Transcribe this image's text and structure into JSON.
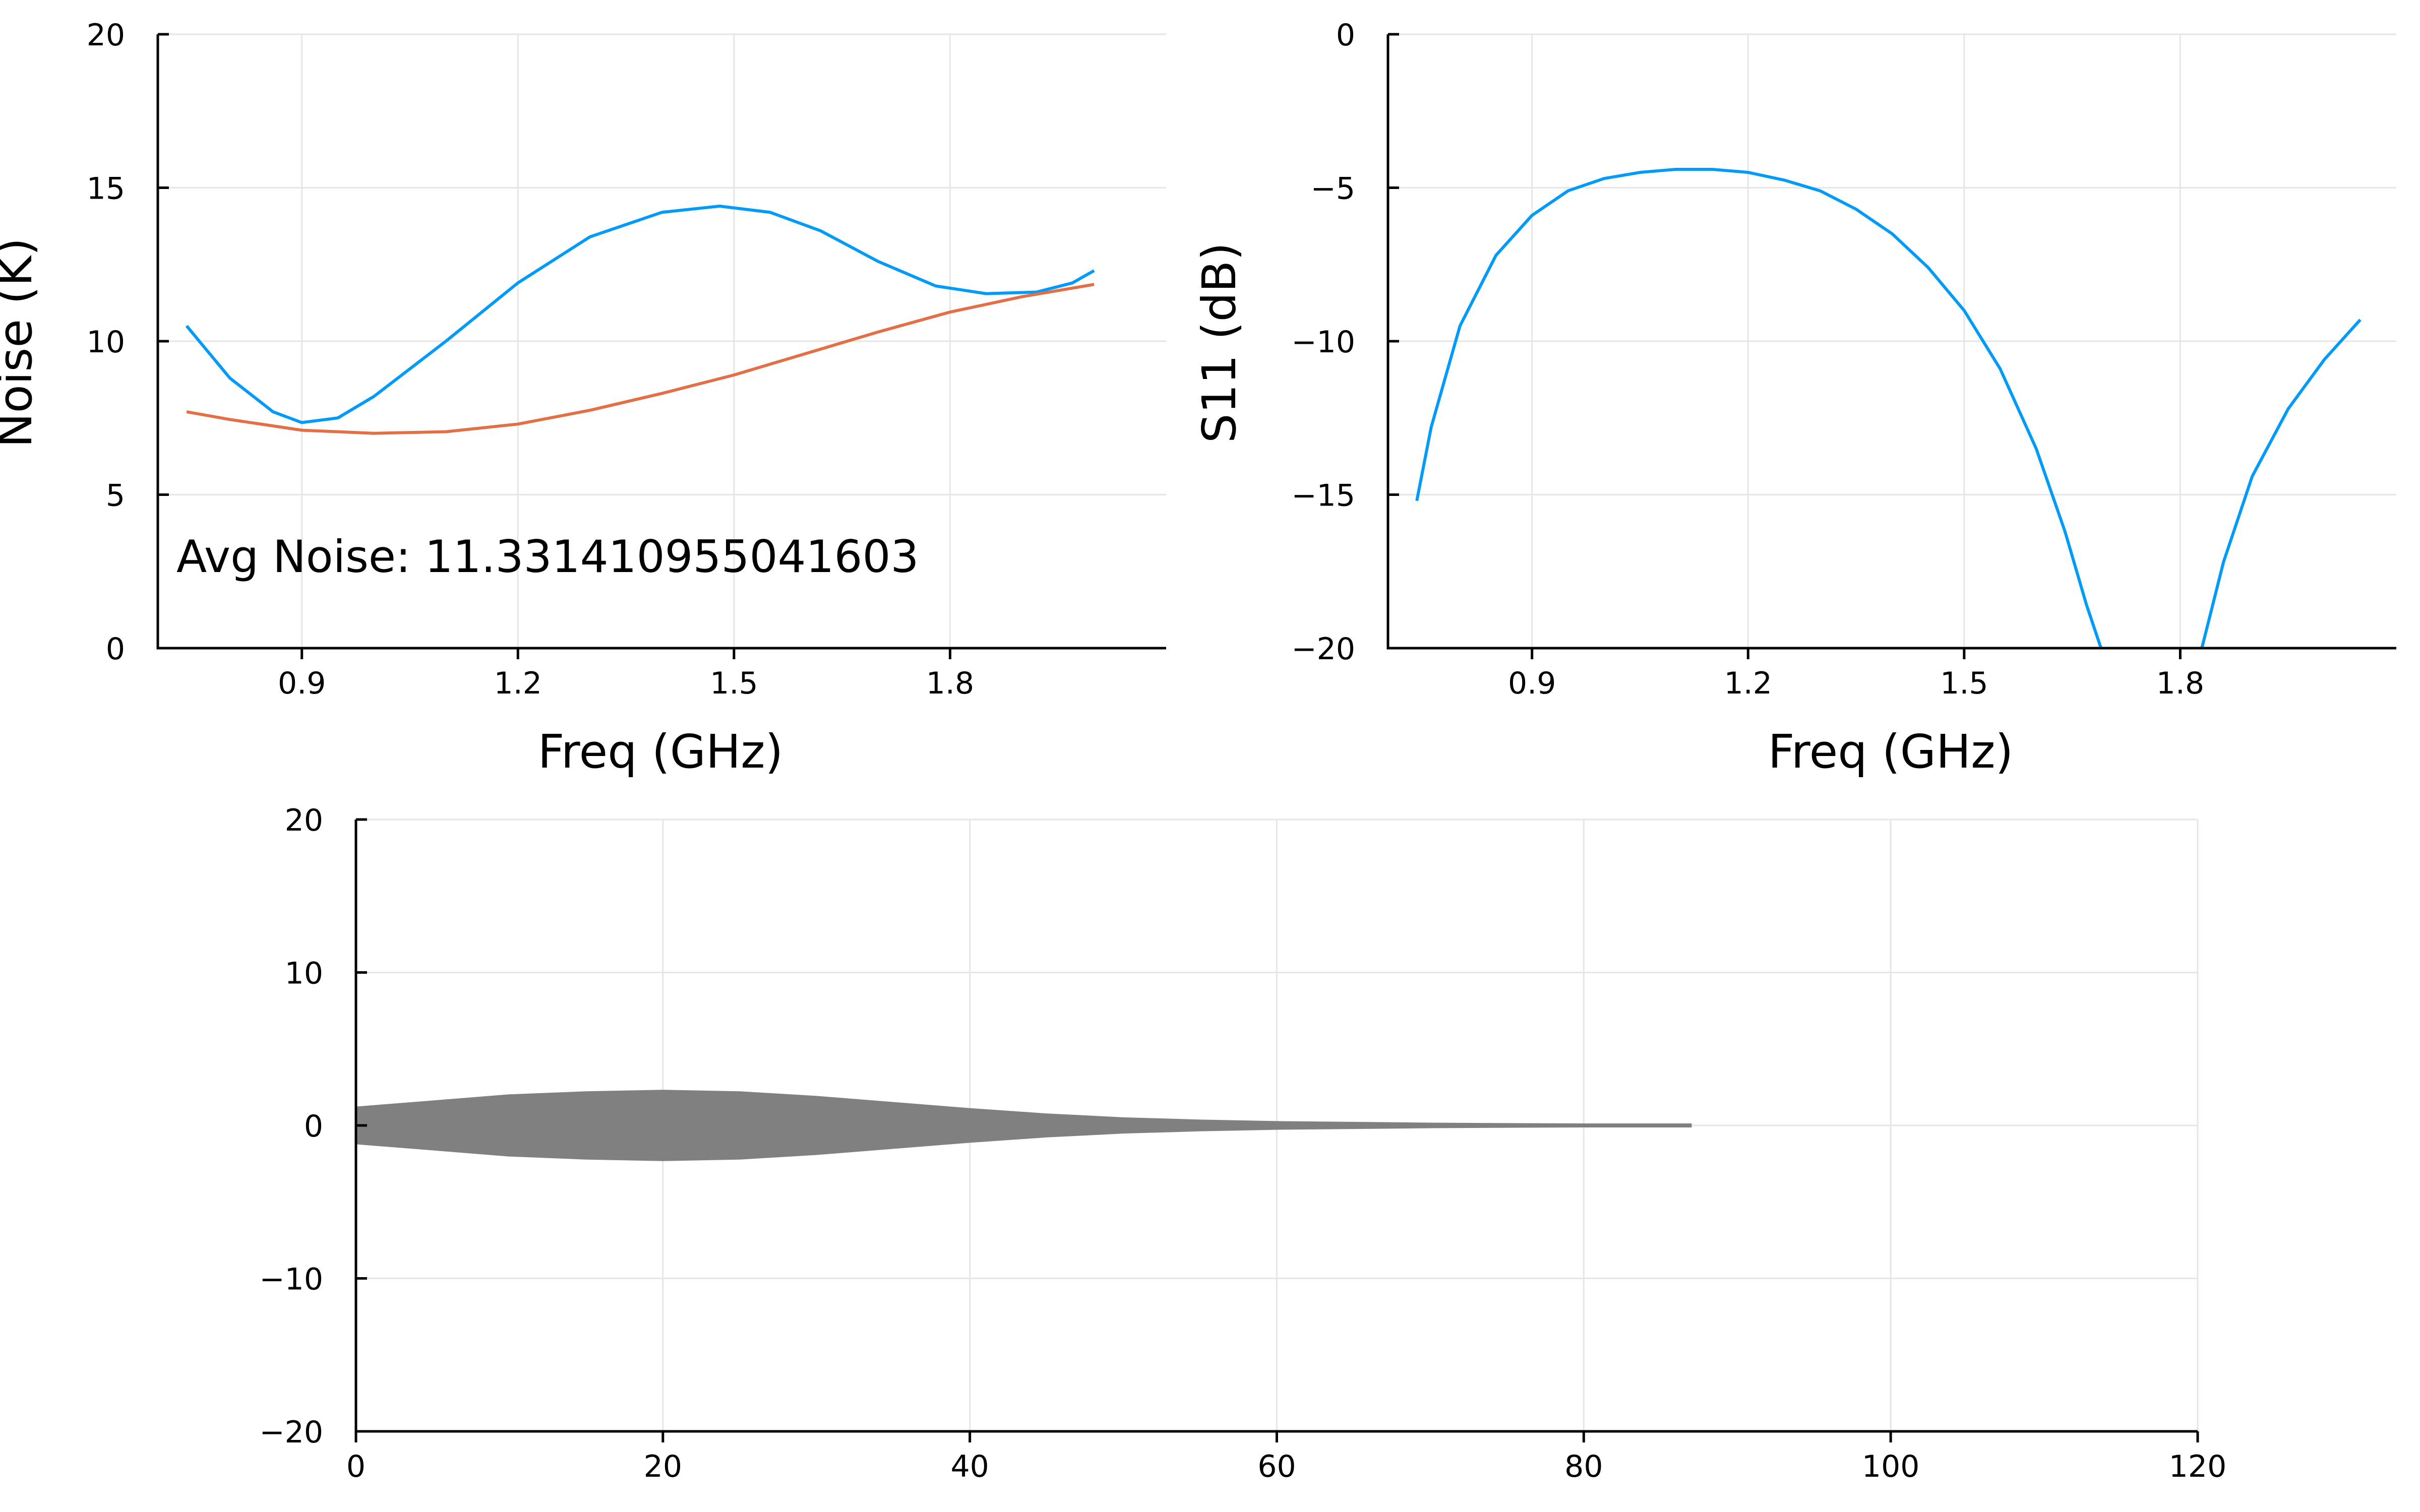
{
  "chart_data": [
    {
      "type": "line",
      "xlabel": "Freq (GHz)",
      "ylabel": "Noise (K)",
      "xlim": [
        0.7,
        2.1
      ],
      "ylim": [
        0,
        20
      ],
      "xticks": [
        "0.9",
        "1.2",
        "1.5",
        "1.8"
      ],
      "yticks": [
        "0",
        "5",
        "10",
        "15",
        "20"
      ],
      "grid": true,
      "annotation": "Avg Noise: 11.331410955041603",
      "series": [
        {
          "color": "#009af9",
          "x": [
            0.74,
            0.8,
            0.86,
            0.9,
            0.95,
            1.0,
            1.1,
            1.2,
            1.3,
            1.4,
            1.48,
            1.55,
            1.62,
            1.7,
            1.78,
            1.85,
            1.92,
            1.97,
            2.0
          ],
          "y": [
            10.5,
            8.8,
            7.7,
            7.35,
            7.5,
            8.2,
            10.0,
            11.9,
            13.4,
            14.2,
            14.4,
            14.2,
            13.6,
            12.6,
            11.8,
            11.55,
            11.6,
            11.9,
            12.3
          ]
        },
        {
          "color": "#e26f46",
          "x": [
            0.74,
            0.8,
            0.9,
            1.0,
            1.1,
            1.2,
            1.3,
            1.4,
            1.5,
            1.6,
            1.7,
            1.8,
            1.9,
            2.0
          ],
          "y": [
            7.7,
            7.45,
            7.1,
            7.0,
            7.05,
            7.3,
            7.75,
            8.3,
            8.9,
            9.6,
            10.3,
            10.95,
            11.45,
            11.85
          ]
        }
      ]
    },
    {
      "type": "line",
      "xlabel": "Freq (GHz)",
      "ylabel": "S11 (dB)",
      "xlim": [
        0.7,
        2.1
      ],
      "ylim": [
        -20,
        0
      ],
      "xticks": [
        "0.9",
        "1.2",
        "1.5",
        "1.8"
      ],
      "yticks": [
        "−20",
        "−15",
        "−10",
        "−5",
        "0"
      ],
      "grid": true,
      "series": [
        {
          "color": "#009af9",
          "segments": [
            {
              "x": [
                0.74,
                0.76,
                0.8,
                0.85,
                0.9,
                0.95,
                1.0,
                1.05,
                1.1,
                1.15,
                1.2,
                1.25,
                1.3,
                1.35,
                1.4,
                1.45,
                1.5,
                1.55,
                1.6,
                1.64,
                1.67,
                1.69
              ],
              "y": [
                -15.2,
                -12.8,
                -9.5,
                -7.2,
                -5.9,
                -5.1,
                -4.7,
                -4.5,
                -4.4,
                -4.4,
                -4.5,
                -4.75,
                -5.1,
                -5.7,
                -6.5,
                -7.6,
                -9.0,
                -10.9,
                -13.5,
                -16.2,
                -18.6,
                -20.0
              ]
            },
            {
              "x": [
                1.83,
                1.86,
                1.9,
                1.95,
                2.0,
                2.05
              ],
              "y": [
                -20.0,
                -17.2,
                -14.4,
                -12.2,
                -10.6,
                -9.3
              ]
            }
          ]
        }
      ]
    },
    {
      "type": "area",
      "xlim": [
        0,
        120
      ],
      "ylim": [
        -20,
        20
      ],
      "xticks": [
        "0",
        "20",
        "40",
        "60",
        "80",
        "100",
        "120"
      ],
      "yticks": [
        "−20",
        "−10",
        "0",
        "10",
        "20"
      ],
      "grid": true,
      "series": [
        {
          "color": "#808080",
          "x": [
            0,
            5,
            10,
            15,
            20,
            25,
            30,
            35,
            40,
            45,
            50,
            55,
            60,
            65,
            70,
            75,
            80,
            85,
            87
          ],
          "upper": [
            1.2,
            1.6,
            2.0,
            2.2,
            2.3,
            2.2,
            1.9,
            1.5,
            1.1,
            0.75,
            0.5,
            0.35,
            0.25,
            0.2,
            0.15,
            0.12,
            0.1,
            0.1,
            0.1
          ],
          "lower": [
            -1.2,
            -1.6,
            -2.0,
            -2.2,
            -2.3,
            -2.2,
            -1.9,
            -1.5,
            -1.1,
            -0.75,
            -0.5,
            -0.35,
            -0.25,
            -0.2,
            -0.15,
            -0.12,
            -0.1,
            -0.1,
            -0.1
          ]
        }
      ]
    }
  ]
}
